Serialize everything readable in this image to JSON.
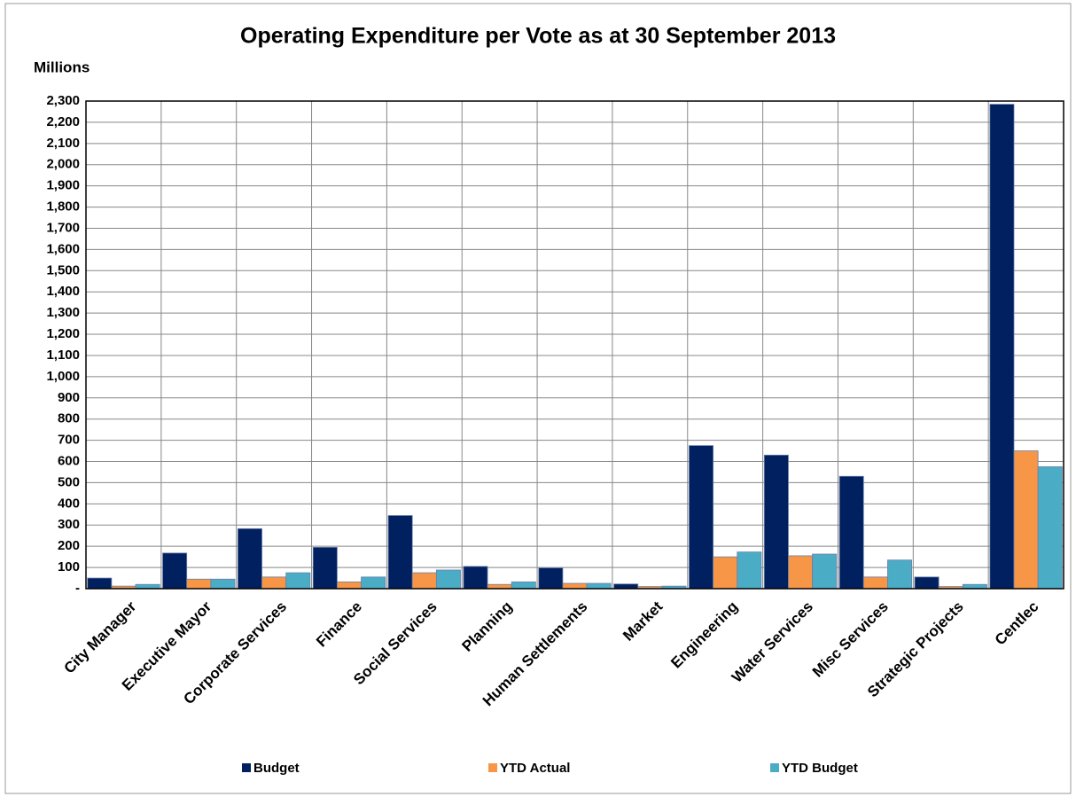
{
  "chart_data": {
    "type": "bar",
    "title": "Operating Expenditure per Vote as at 30 September 2013",
    "y_axis_label": "Millions",
    "categories": [
      "City Manager",
      "Executive Mayor",
      "Corporate Services",
      "Finance",
      "Social Services",
      "Planning",
      "Human Settlements",
      "Market",
      "Engineering",
      "Water Services",
      "Misc Services",
      "Strategic Projects",
      "Centlec"
    ],
    "series": [
      {
        "name": "Budget",
        "color": "#002060",
        "values": [
          50,
          168,
          283,
          195,
          345,
          105,
          98,
          22,
          675,
          630,
          530,
          55,
          2285
        ]
      },
      {
        "name": "YTD Actual",
        "color": "#f79646",
        "values": [
          12,
          45,
          55,
          32,
          75,
          20,
          25,
          10,
          150,
          155,
          55,
          10,
          650
        ]
      },
      {
        "name": "YTD Budget",
        "color": "#4bacc6",
        "values": [
          20,
          45,
          75,
          55,
          88,
          32,
          25,
          12,
          173,
          163,
          135,
          20,
          575
        ]
      }
    ],
    "ylim": [
      0,
      2300
    ],
    "yticks": [
      {
        "value": 0,
        "label": "-"
      },
      100,
      200,
      300,
      400,
      500,
      600,
      700,
      800,
      900,
      {
        "value": 1000,
        "label": "1,000"
      },
      {
        "value": 1100,
        "label": "1,100"
      },
      {
        "value": 1200,
        "label": "1,200"
      },
      {
        "value": 1300,
        "label": "1,300"
      },
      {
        "value": 1400,
        "label": "1,400"
      },
      {
        "value": 1500,
        "label": "1,500"
      },
      {
        "value": 1600,
        "label": "1,600"
      },
      {
        "value": 1700,
        "label": "1,700"
      },
      {
        "value": 1800,
        "label": "1,800"
      },
      {
        "value": 1900,
        "label": "1,900"
      },
      {
        "value": 2000,
        "label": "2,000"
      },
      {
        "value": 2100,
        "label": "2,100"
      },
      {
        "value": 2200,
        "label": "2,200"
      },
      {
        "value": 2300,
        "label": "2,300"
      }
    ],
    "grid": true,
    "legend": "bottom"
  }
}
